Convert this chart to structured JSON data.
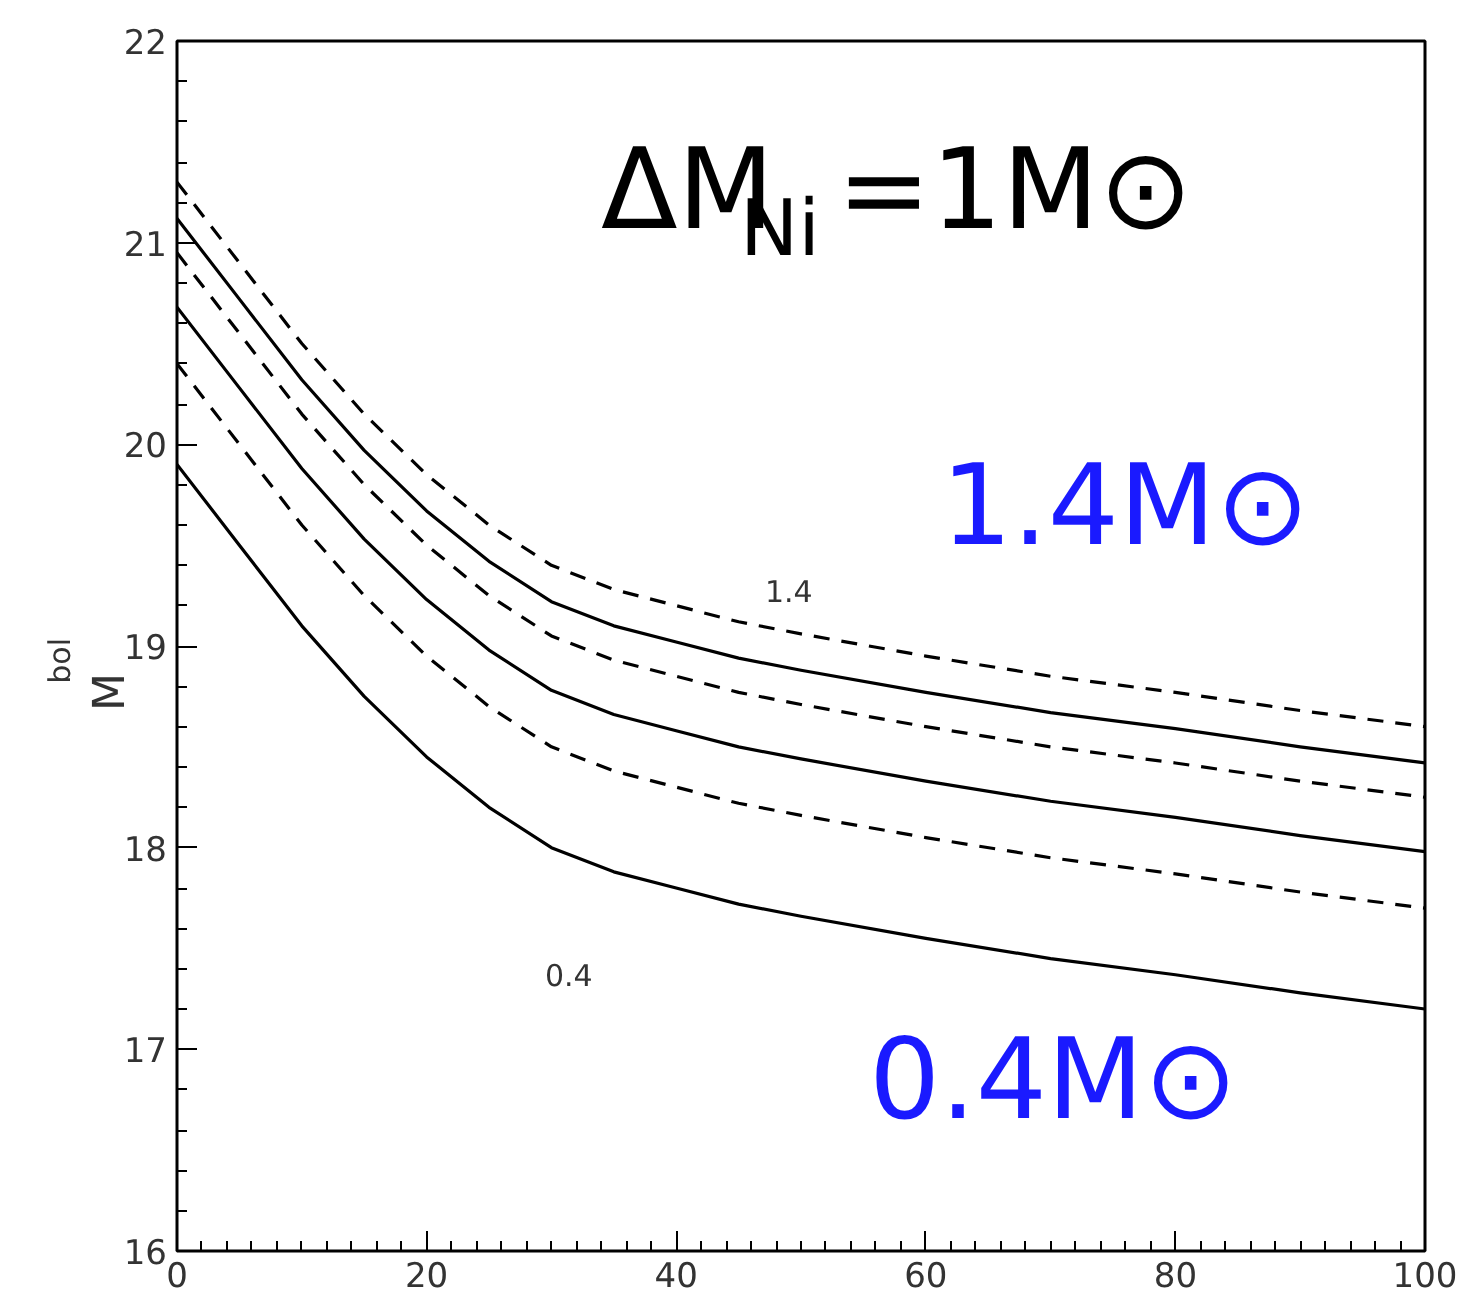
{
  "chart_data": {
    "type": "line",
    "ylabel": "M$_{bol}$",
    "x": [
      0,
      5,
      10,
      15,
      20,
      25,
      30,
      35,
      40,
      45,
      50,
      60,
      70,
      80,
      90,
      100
    ],
    "xlim": [
      0,
      100
    ],
    "xticks": [
      0,
      20,
      40,
      60,
      80,
      100
    ],
    "ylim": [
      16,
      22
    ],
    "yticks": [
      16,
      17,
      18,
      19,
      20,
      21,
      22
    ],
    "grid": false,
    "marker": "none",
    "series": [
      {
        "color": "#000000",
        "line_style": "dashed",
        "values": [
          21.3,
          20.9,
          20.5,
          20.15,
          19.85,
          19.6,
          19.4,
          19.28,
          19.2,
          19.12,
          19.06,
          18.95,
          18.85,
          18.77,
          18.68,
          18.6
        ]
      },
      {
        "color": "#000000",
        "line_style": "solid",
        "values": [
          21.12,
          20.72,
          20.32,
          19.97,
          19.67,
          19.42,
          19.22,
          19.1,
          19.02,
          18.94,
          18.88,
          18.77,
          18.67,
          18.59,
          18.5,
          18.42
        ]
      },
      {
        "color": "#000000",
        "line_style": "dashed",
        "values": [
          20.95,
          20.55,
          20.15,
          19.8,
          19.5,
          19.25,
          19.05,
          18.93,
          18.85,
          18.77,
          18.71,
          18.6,
          18.5,
          18.42,
          18.33,
          18.25
        ]
      },
      {
        "color": "#000000",
        "line_style": "solid",
        "values": [
          20.68,
          20.28,
          19.88,
          19.53,
          19.23,
          18.98,
          18.78,
          18.66,
          18.58,
          18.5,
          18.44,
          18.33,
          18.23,
          18.15,
          18.06,
          17.98
        ]
      },
      {
        "color": "#000000",
        "line_style": "dashed",
        "values": [
          20.4,
          20.0,
          19.6,
          19.25,
          18.95,
          18.7,
          18.5,
          18.38,
          18.3,
          18.22,
          18.16,
          18.05,
          17.95,
          17.87,
          17.78,
          17.7
        ]
      },
      {
        "color": "#000000",
        "line_style": "solid",
        "values": [
          19.9,
          19.5,
          19.1,
          18.75,
          18.45,
          18.2,
          18.0,
          17.88,
          17.8,
          17.72,
          17.66,
          17.55,
          17.45,
          17.37,
          17.28,
          17.2
        ]
      }
    ],
    "annotations": [
      "1.4",
      "0.4",
      "ΔM$_{Ni}$=1M⊙",
      "1.4M⊙",
      "0.4M⊙"
    ]
  }
}
